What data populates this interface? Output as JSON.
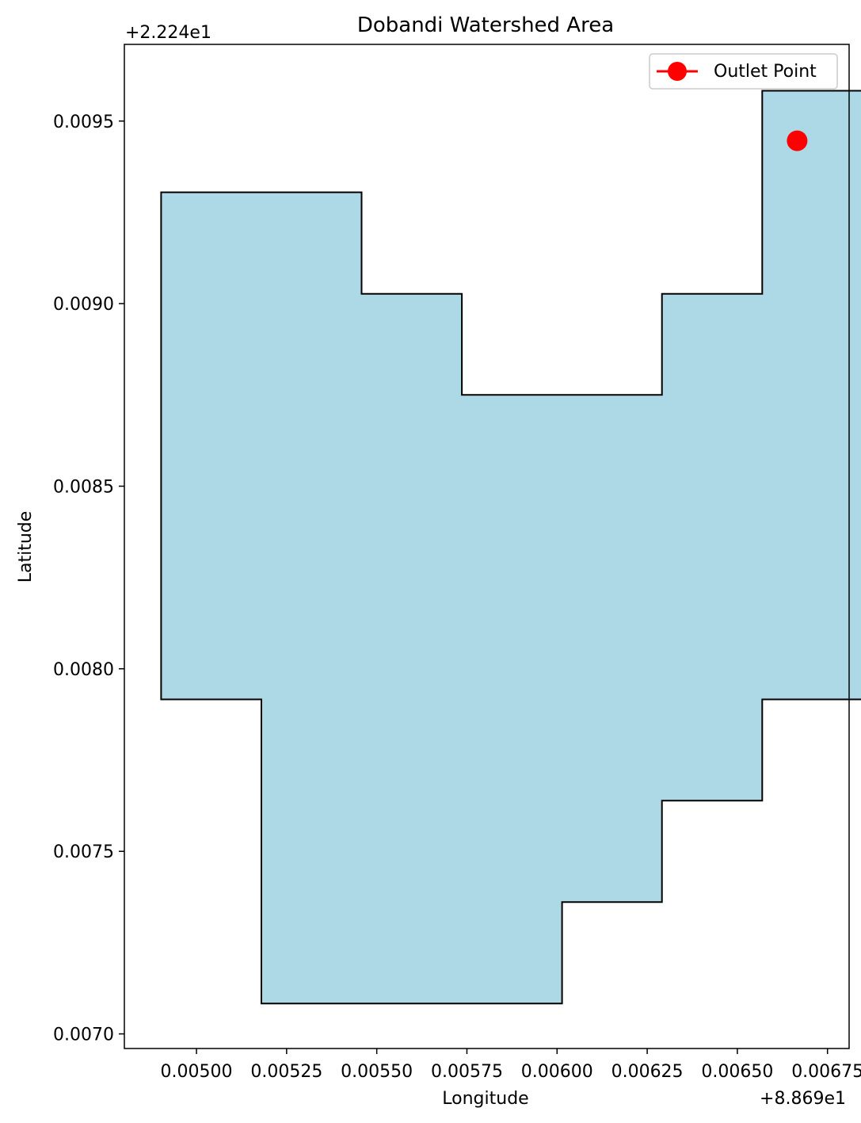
{
  "chart_data": {
    "type": "area",
    "title": "Dobandi Watershed Area",
    "xlabel": "Longitude",
    "ylabel": "Latitude",
    "x_offset_label": "+8.869e1",
    "y_offset_label": "+2.224e1",
    "xlim": [
      0.0048,
      0.00681
    ],
    "ylim": [
      0.00696,
      0.00971
    ],
    "x_ticks": [
      0.005,
      0.00525,
      0.0055,
      0.00575,
      0.006,
      0.00625,
      0.0065,
      0.00675
    ],
    "x_tick_labels": [
      "0.00500",
      "0.00525",
      "0.00550",
      "0.00575",
      "0.00600",
      "0.00625",
      "0.00650",
      "0.00675"
    ],
    "y_ticks": [
      0.007,
      0.0075,
      0.008,
      0.0085,
      0.009,
      0.0095
    ],
    "y_tick_labels": [
      "0.0070",
      "0.0075",
      "0.0080",
      "0.0085",
      "0.0090",
      "0.0095"
    ],
    "grid": false,
    "legend_position": "top-right",
    "polygon": {
      "fill": "#add8e6",
      "stroke": "#000000",
      "x": [
        0.004902,
        0.00518,
        0.00518,
        0.005458,
        0.005458,
        0.005736,
        0.005736,
        0.006014,
        0.006014,
        0.006291,
        0.006291,
        0.006569,
        0.006569,
        0.006847,
        0.006847,
        0.006569,
        0.006569,
        0.006291,
        0.006291,
        0.005736,
        0.005736,
        0.005458,
        0.005458,
        0.004902,
        0.004902
      ],
      "y": [
        0.007916,
        0.007916,
        0.007083,
        0.007083,
        0.007083,
        0.007083,
        0.007083,
        0.007083,
        0.007361,
        0.007361,
        0.007639,
        0.007639,
        0.007916,
        0.007916,
        0.009583,
        0.009583,
        0.009027,
        0.009027,
        0.00875,
        0.00875,
        0.009027,
        0.009027,
        0.009305,
        0.009305,
        0.007916
      ]
    },
    "series": [
      {
        "name": "Outlet Point",
        "color": "#ff0000",
        "marker": "circle",
        "x": [
          0.006666
        ],
        "y": [
          0.009446
        ]
      }
    ]
  }
}
